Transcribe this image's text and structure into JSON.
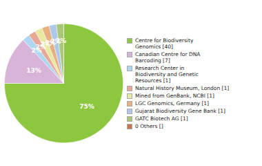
{
  "chart_data": {
    "type": "pie",
    "categories": [
      "Centre for Biodiversity\nGenomics [40]",
      "Canadian Centre for DNA\nBarcoding [7]",
      "Research Center in\nBiodiversity and Genetic\nResources [1]",
      "Natural History Museum, London [1]",
      "Mined from GenBank, NCBI [1]",
      "LGC Genomics, Germany [1]",
      "Gujarat Biodiversity Gene Bank [1]",
      "GATC Biotech AG [1]",
      "0 Others []"
    ],
    "values": [
      75,
      13,
      2,
      2,
      2,
      2,
      2,
      2,
      0
    ],
    "value_labels": [
      "75%",
      "13%",
      "2%",
      "2%",
      "2%",
      "2%",
      "2%",
      "2%",
      null
    ],
    "colors": [
      "#8dc63f",
      "#d8b4d8",
      "#aed6f1",
      "#e8a898",
      "#e8e8a0",
      "#e8b080",
      "#b0c8e8",
      "#a8c878",
      "#c87850"
    ],
    "data_labels": true,
    "legend": "right"
  }
}
